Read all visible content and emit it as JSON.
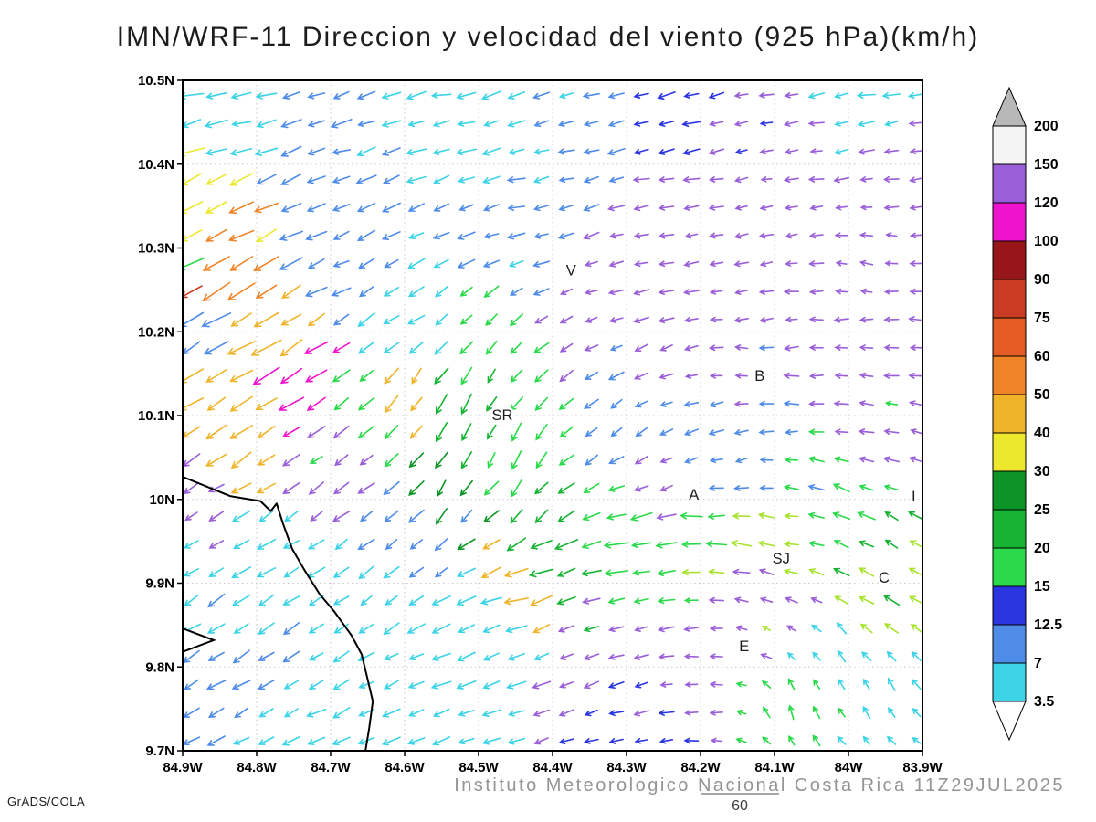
{
  "title": "IMN/WRF-11 Direccion y velocidad del viento (925 hPa)(km/h)",
  "footer": {
    "institute": "Instituto Meteorologico Nacional Costa Rica 11Z29JUL2025",
    "credit": "GrADS/COLA",
    "reference_vector": {
      "label": "60",
      "speed_kmh": 60
    }
  },
  "chart_data": {
    "type": "vector_field_map",
    "model": "IMN/WRF-11",
    "variable": "Direccion y velocidad del viento",
    "pressure_level": "925 hPa",
    "units": "km/h",
    "valid_time": "11Z29JUL2025",
    "grid_on": true,
    "x_axis": {
      "lon_min": -84.9,
      "lon_max": -83.9,
      "ticks": [
        {
          "v": -84.9,
          "label": "84.9W"
        },
        {
          "v": -84.8,
          "label": "84.8W"
        },
        {
          "v": -84.7,
          "label": "84.7W"
        },
        {
          "v": -84.6,
          "label": "84.6W"
        },
        {
          "v": -84.5,
          "label": "84.5W"
        },
        {
          "v": -84.4,
          "label": "84.4W"
        },
        {
          "v": -84.3,
          "label": "84.3W"
        },
        {
          "v": -84.2,
          "label": "84.2W"
        },
        {
          "v": -84.1,
          "label": "84.1W"
        },
        {
          "v": -84.0,
          "label": "84W"
        },
        {
          "v": -83.9,
          "label": "83.9W"
        }
      ]
    },
    "y_axis": {
      "lat_min": 9.7,
      "lat_max": 10.5,
      "ticks": [
        {
          "v": 10.5,
          "label": "10.5N"
        },
        {
          "v": 10.4,
          "label": "10.4N"
        },
        {
          "v": 10.3,
          "label": "10.3N"
        },
        {
          "v": 10.2,
          "label": "10.2N"
        },
        {
          "v": 10.1,
          "label": "10.1N"
        },
        {
          "v": 10.0,
          "label": "10N"
        },
        {
          "v": 9.9,
          "label": "9.9N"
        },
        {
          "v": 9.8,
          "label": "9.8N"
        },
        {
          "v": 9.7,
          "label": "9.7N"
        }
      ]
    },
    "colorbar": {
      "levels": [
        3.5,
        7,
        12.5,
        15,
        20,
        25,
        30,
        40,
        50,
        60,
        75,
        90,
        100,
        120,
        150,
        200
      ],
      "colors": [
        "#ffffff",
        "#3cd3e6",
        "#4f8ce8",
        "#2a35e0",
        "#2bd94a",
        "#17b434",
        "#0c9427",
        "#ece82e",
        "#f0b42a",
        "#ef8426",
        "#e45b24",
        "#c93b22",
        "#97161a",
        "#f013ce",
        "#9a5fd8",
        "#f4f4f4",
        "#b8b8b8"
      ]
    },
    "arrow_palette": {
      "cyan": "#3cd3e6",
      "blue": "#4f8ce8",
      "dblue": "#2a35e0",
      "green": "#2bd94a",
      "green2": "#17b434",
      "dgreen": "#0c9427",
      "ygreen": "#a8e22e",
      "yellow": "#ece82e",
      "gold": "#f0b42a",
      "orange": "#ef8426",
      "red": "#c93b22",
      "magenta": "#f013ce",
      "violet": "#9a5fd8"
    },
    "stations": [
      {
        "label": "V",
        "lon": -84.375,
        "lat": 10.273
      },
      {
        "label": "B",
        "lon": -84.12,
        "lat": 10.147
      },
      {
        "label": "SR",
        "lon": -84.468,
        "lat": 10.1
      },
      {
        "label": "A",
        "lon": -84.209,
        "lat": 10.005
      },
      {
        "label": "SJ",
        "lon": -84.091,
        "lat": 9.929
      },
      {
        "label": "C",
        "lon": -83.952,
        "lat": 9.906
      },
      {
        "label": "E",
        "lon": -84.141,
        "lat": 9.824
      },
      {
        "label": "I",
        "lon": -83.912,
        "lat": 10.003
      }
    ],
    "coastline": [
      [
        -84.9,
        10.027
      ],
      [
        -84.836,
        10.004
      ],
      [
        -84.795,
        9.998
      ],
      [
        -84.781,
        9.986
      ],
      [
        -84.773,
        9.995
      ],
      [
        -84.764,
        9.97
      ],
      [
        -84.752,
        9.941
      ],
      [
        -84.735,
        9.915
      ],
      [
        -84.715,
        9.887
      ],
      [
        -84.695,
        9.866
      ],
      [
        -84.672,
        9.838
      ],
      [
        -84.658,
        9.815
      ],
      [
        -84.651,
        9.789
      ],
      [
        -84.643,
        9.759
      ],
      [
        -84.648,
        9.726
      ],
      [
        -84.653,
        9.7
      ]
    ],
    "islands": [
      [
        [
          -84.9,
          9.846
        ],
        [
          -84.858,
          9.832
        ],
        [
          -84.9,
          9.818
        ]
      ]
    ],
    "wind_control_points": [
      [
        -84.85,
        10.47,
        -16,
        -1,
        "cyan"
      ],
      [
        -84.55,
        10.47,
        -15,
        -2,
        "cyan"
      ],
      [
        -84.25,
        10.46,
        -13,
        -3,
        "dblue"
      ],
      [
        -83.95,
        10.47,
        -13,
        -2,
        "cyan"
      ],
      [
        -84.7,
        10.42,
        -14,
        -3,
        "blue"
      ],
      [
        -84.45,
        10.38,
        -12,
        -2,
        "cyan"
      ],
      [
        -84.35,
        10.43,
        -11,
        -2,
        "blue"
      ],
      [
        -84.1,
        10.4,
        -8,
        -1,
        "violet"
      ],
      [
        -83.92,
        10.42,
        -9,
        -2,
        "violet"
      ],
      [
        -84.25,
        10.33,
        -9,
        0,
        "violet"
      ],
      [
        -83.97,
        10.3,
        -8,
        2,
        "violet"
      ],
      [
        -84.15,
        10.18,
        -8,
        1,
        "violet"
      ],
      [
        -83.95,
        10.08,
        -9,
        2,
        "violet"
      ],
      [
        -84.35,
        10.24,
        -9,
        -1,
        "violet"
      ],
      [
        -84.45,
        10.33,
        -11,
        -2,
        "blue"
      ],
      [
        -84.88,
        10.35,
        -20,
        -8,
        "yellow"
      ],
      [
        -84.83,
        10.29,
        -22,
        -11,
        "orange"
      ],
      [
        -84.87,
        10.24,
        -22,
        -13,
        "red"
      ],
      [
        -84.78,
        10.19,
        -20,
        -14,
        "gold"
      ],
      [
        -84.76,
        10.15,
        -21,
        -11,
        "magenta"
      ],
      [
        -84.82,
        10.11,
        -17,
        -12,
        "gold"
      ],
      [
        -84.9,
        10.2,
        -13,
        -8,
        "blue"
      ],
      [
        -84.9,
        10.3,
        -15,
        -9,
        "green"
      ],
      [
        -84.68,
        10.28,
        -11,
        -4,
        "blue"
      ],
      [
        -84.6,
        10.22,
        -10,
        -5,
        "cyan"
      ],
      [
        -84.6,
        10.13,
        -7,
        -18,
        "gold"
      ],
      [
        -84.52,
        10.1,
        -4,
        -17,
        "green2"
      ],
      [
        -84.45,
        10.05,
        -3,
        -16,
        "green"
      ],
      [
        -84.55,
        10.0,
        -6,
        -14,
        "dgreen"
      ],
      [
        -84.42,
        9.98,
        -6,
        -13,
        "green2"
      ],
      [
        -84.48,
        10.17,
        -5,
        -12,
        "green"
      ],
      [
        -84.3,
        10.08,
        -7,
        -8,
        "blue"
      ],
      [
        -84.25,
        10.02,
        -7,
        -5,
        "violet"
      ],
      [
        -84.15,
        10.05,
        -7,
        -2,
        "blue"
      ],
      [
        -84.4,
        9.94,
        -20,
        -3,
        "green2"
      ],
      [
        -84.3,
        9.955,
        -22,
        -2,
        "green"
      ],
      [
        -84.45,
        9.9,
        -24,
        -5,
        "gold"
      ],
      [
        -84.2,
        9.97,
        -18,
        2,
        "green"
      ],
      [
        -84.12,
        9.93,
        -16,
        4,
        "ygreen"
      ],
      [
        -84.0,
        10.0,
        -13,
        6,
        "green"
      ],
      [
        -83.93,
        9.95,
        -10,
        7,
        "green2"
      ],
      [
        -83.95,
        9.88,
        -12,
        8,
        "ygreen"
      ],
      [
        -84.02,
        9.82,
        -4,
        10,
        "cyan"
      ],
      [
        -83.95,
        9.76,
        -3,
        9,
        "cyan"
      ],
      [
        -84.08,
        9.75,
        -1,
        12,
        "green"
      ],
      [
        -84.55,
        9.75,
        -13,
        -4,
        "cyan"
      ],
      [
        -84.3,
        9.73,
        -11,
        -3,
        "dblue"
      ],
      [
        -84.75,
        9.72,
        -12,
        -5,
        "cyan"
      ],
      [
        -84.2,
        9.78,
        -7,
        -1,
        "violet"
      ],
      [
        -84.35,
        9.8,
        -8,
        -3,
        "violet"
      ],
      [
        -84.85,
        9.9,
        -12,
        -8,
        "cyan"
      ],
      [
        -84.82,
        9.8,
        -11,
        -7,
        "blue"
      ],
      [
        -84.9,
        9.98,
        -9,
        -6,
        "violet"
      ],
      [
        -84.65,
        9.88,
        -10,
        -7,
        "cyan"
      ],
      [
        -84.6,
        9.95,
        -9,
        -6,
        "blue"
      ],
      [
        -84.5,
        9.85,
        -12,
        -6,
        "cyan"
      ],
      [
        -84.7,
        10.05,
        -8,
        -5,
        "violet"
      ],
      [
        -84.65,
        10.1,
        -9,
        -7,
        "green"
      ],
      [
        -84.12,
        9.86,
        -4,
        3,
        "violet"
      ]
    ],
    "vector_grid": {
      "lon_start": -84.888,
      "lon_step": 0.0338,
      "lon_count": 30,
      "lat_start": 9.712,
      "lat_step": 0.0335,
      "lat_count": 24
    },
    "seed": 20250729
  }
}
